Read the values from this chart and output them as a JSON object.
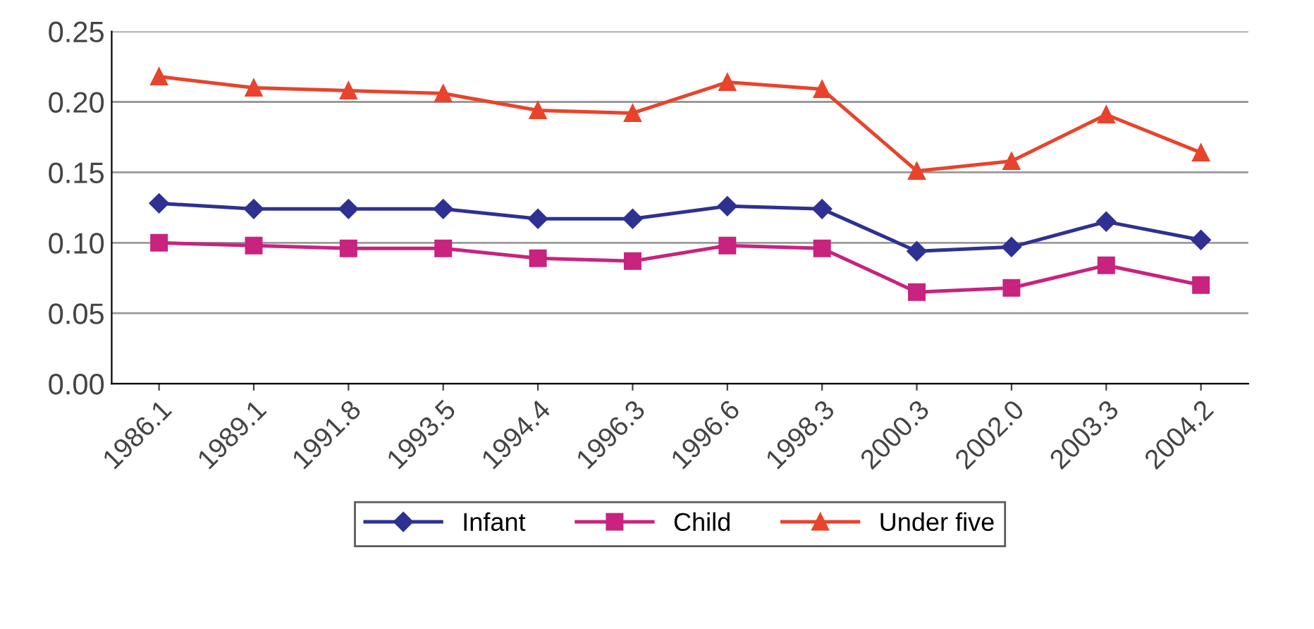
{
  "chart_data": {
    "type": "line",
    "categories": [
      "1986.1",
      "1989.1",
      "1991.8",
      "1993.5",
      "1994.4",
      "1996.3",
      "1996.6",
      "1998.3",
      "2000.3",
      "2002.0",
      "2003.3",
      "2004.2"
    ],
    "series": [
      {
        "name": "Infant",
        "color": "#2e3192",
        "marker": "diamond",
        "values": [
          0.128,
          0.124,
          0.124,
          0.124,
          0.117,
          0.117,
          0.126,
          0.124,
          0.094,
          0.097,
          0.115,
          0.102
        ]
      },
      {
        "name": "Child",
        "color": "#c8237f",
        "marker": "square",
        "values": [
          0.1,
          0.098,
          0.096,
          0.096,
          0.089,
          0.087,
          0.098,
          0.096,
          0.065,
          0.068,
          0.084,
          0.07
        ]
      },
      {
        "name": "Under five",
        "color": "#e8442c",
        "marker": "triangle",
        "values": [
          0.218,
          0.21,
          0.208,
          0.206,
          0.194,
          0.192,
          0.214,
          0.209,
          0.151,
          0.158,
          0.191,
          0.164
        ]
      }
    ],
    "ylim": [
      0,
      0.25
    ],
    "yticks": [
      {
        "value": 0,
        "label": "0.00"
      },
      {
        "value": 0.05,
        "label": "0.05"
      },
      {
        "value": 0.1,
        "label": "0.10"
      },
      {
        "value": 0.15,
        "label": "0.15"
      },
      {
        "value": 0.2,
        "label": "0.20"
      },
      {
        "value": 0.25,
        "label": "0.25"
      }
    ],
    "grid": "y",
    "legend": "bottom"
  }
}
